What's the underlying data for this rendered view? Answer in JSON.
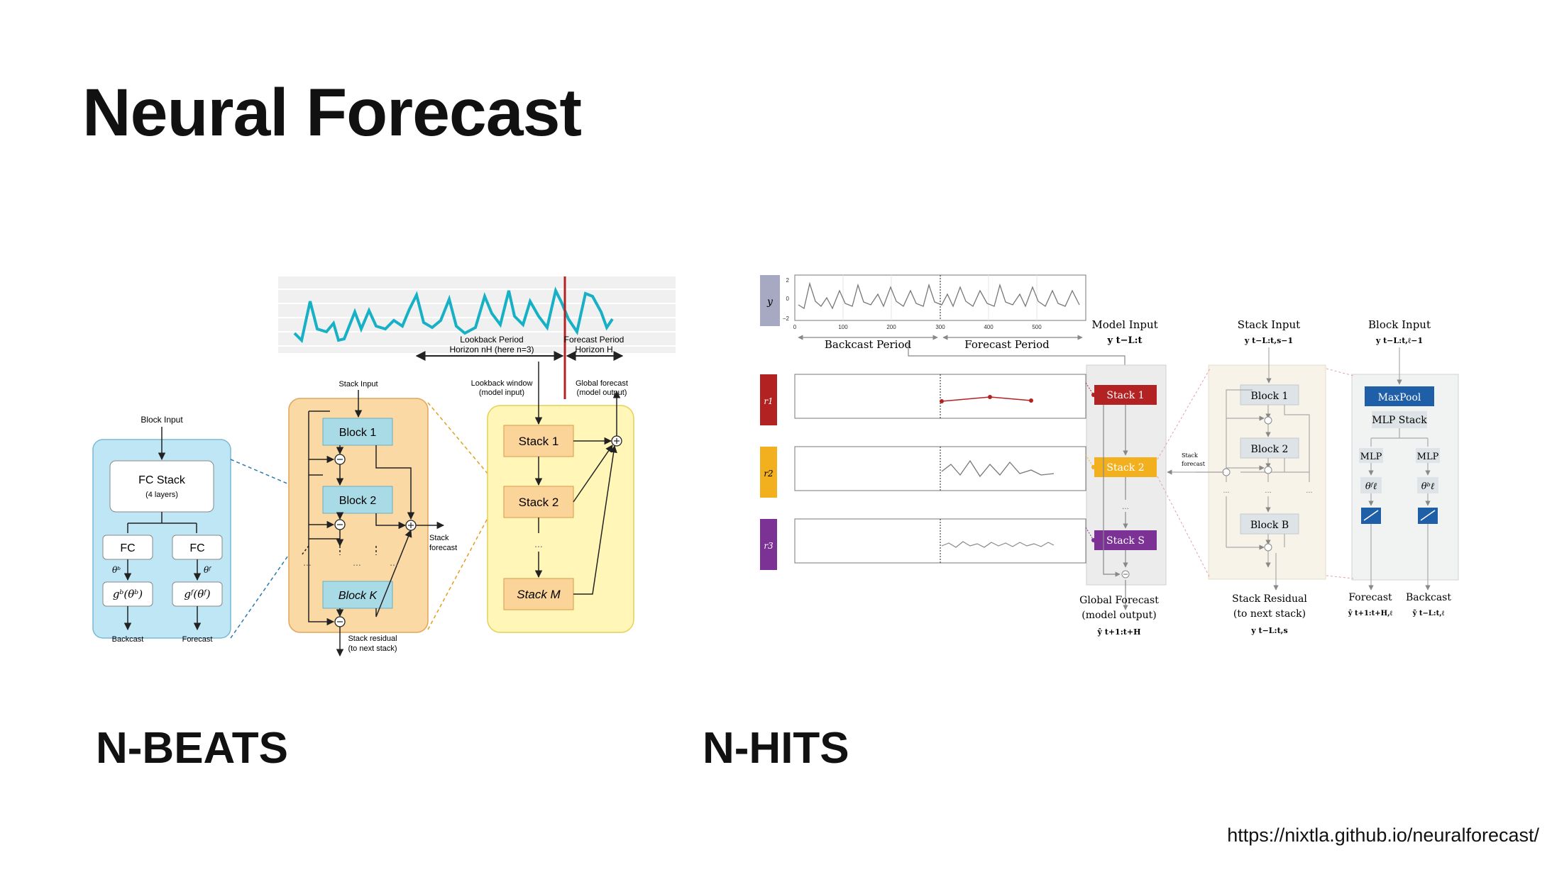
{
  "slide": {
    "title": "Neural Forecast",
    "left_caption": "N-BEATS",
    "right_caption": "N-HITS",
    "url": "https://nixtla.github.io/neuralforecast/"
  },
  "nbeats": {
    "lookback_label_1": "Lookback Period",
    "lookback_label_2": "Horizon nH (here n=3)",
    "forecast_label_1": "Forecast Period",
    "forecast_label_2": "Horizon H",
    "lookback_window_1": "Lookback window",
    "lookback_window_2": "(model input)",
    "global_forecast_1": "Global forecast",
    "global_forecast_2": "(model output)",
    "stack_input": "Stack Input",
    "block_input": "Block Input",
    "fc_stack": "FC Stack",
    "fc_layers": "(4 layers)",
    "fc": "FC",
    "theta_b": "θᵇ",
    "theta_f": "θᶠ",
    "g_b": "gᵇ(θᵇ)",
    "g_f": "gᶠ(θᶠ)",
    "backcast": "Backcast",
    "forecast": "Forecast",
    "block_1": "Block 1",
    "block_2": "Block 2",
    "block_k": "Block K",
    "stack_forecast_1": "Stack",
    "stack_forecast_2": "forecast",
    "stack_residual_1": "Stack residual",
    "stack_residual_2": "(to next stack)",
    "stack_1": "Stack 1",
    "stack_2": "Stack 2",
    "stack_m": "Stack M",
    "ellipsis": "...",
    "colors": {
      "series": "#17b0c4",
      "cutoff": "#b22222",
      "blue_panel": "#bfe6f5",
      "orange_panel": "#fbd9a4",
      "yellow_panel": "#fff6b8",
      "block": "#a9dbe6",
      "stack": "#fbd49a"
    }
  },
  "nhits": {
    "y_label": "y",
    "r1_label": "r1",
    "r2_label": "r2",
    "r3_label": "r3",
    "backcast_period": "Backcast Period",
    "forecast_period": "Forecast Period",
    "model_input": "Model Input",
    "model_input_sym": "y t−L:t",
    "stack_input": "Stack Input",
    "stack_input_sym": "y t−L:t,s−1",
    "block_input": "Block Input",
    "block_input_sym": "y t−L:t,ℓ−1",
    "stack_1": "Stack 1",
    "stack_2": "Stack 2",
    "stack_s": "Stack S",
    "stack_forecast_1": "Stack",
    "stack_forecast_2": "forecast",
    "block_1": "Block 1",
    "block_2": "Block 2",
    "block_b": "Block B",
    "maxpool": "MaxPool",
    "mlp_stack": "MLP Stack",
    "mlp": "MLP",
    "theta_f": "θᶠℓ",
    "theta_b": "θᵇℓ",
    "global_forecast_1": "Global Forecast",
    "global_forecast_2": "(model output)",
    "global_forecast_sym": "ŷ t+1:t+H",
    "stack_residual_1": "Stack Residual",
    "stack_residual_2": "(to next stack)",
    "stack_residual_sym": "y t−L:t,s",
    "forecast": "Forecast",
    "forecast_sym": "ŷ t+1:t+H,ℓ",
    "backcast": "Backcast",
    "backcast_sym": "ỹ t−L:t,ℓ",
    "ticks_x": [
      "0",
      "100",
      "200",
      "300",
      "400",
      "500"
    ],
    "ticks_y": [
      "2",
      "0",
      "−2"
    ],
    "ellipsis": "...",
    "colors": {
      "stack_1": "#b22222",
      "stack_2": "#f2b01e",
      "stack_s": "#7b3294",
      "maxpool": "#1f5fa8",
      "label_tab": "#a7a8c2",
      "block": "#dde3e6"
    }
  }
}
